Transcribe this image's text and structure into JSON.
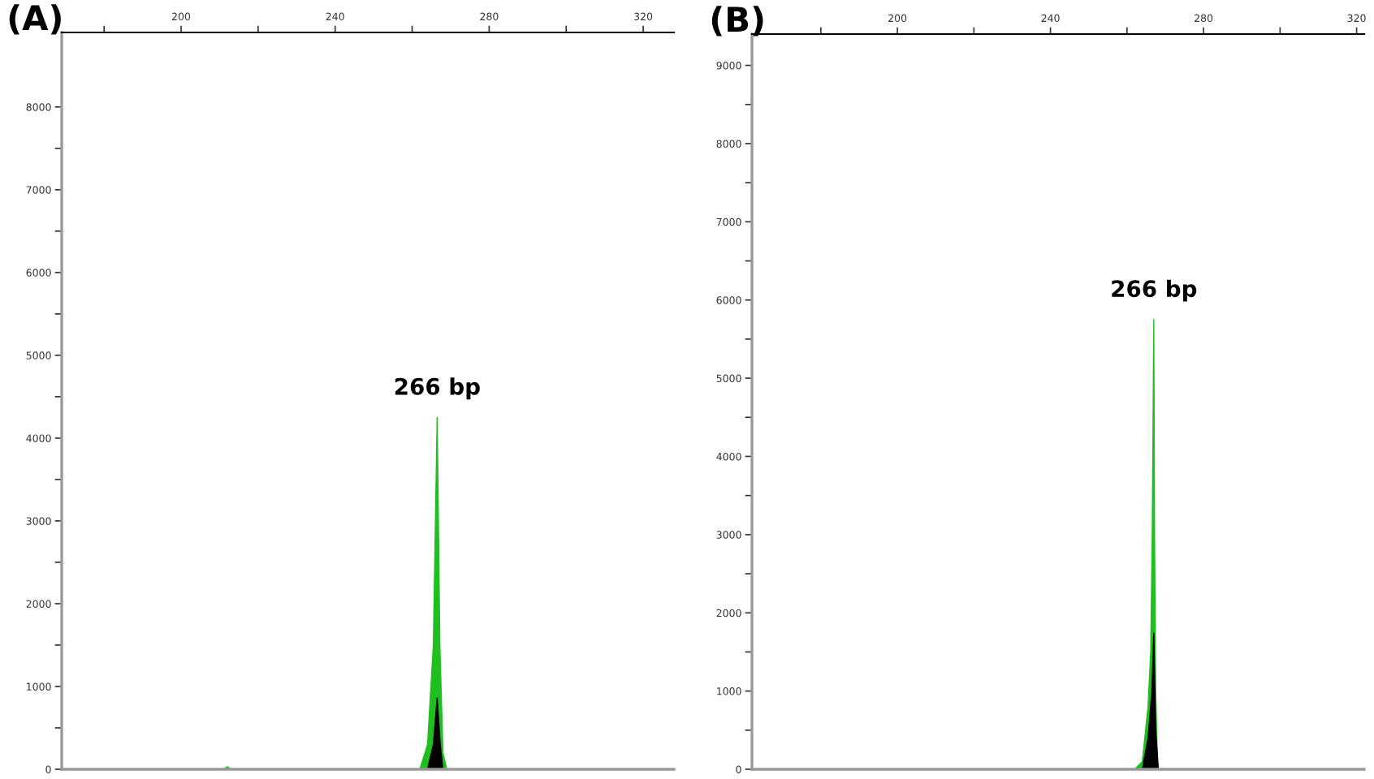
{
  "chart_data": [
    {
      "type": "area",
      "title": "(A)",
      "xlim": [
        169,
        328
      ],
      "ylim": [
        0,
        8900
      ],
      "xticks": [
        {
          "value": 180,
          "label": null
        },
        200,
        {
          "value": 220,
          "label": null
        },
        240,
        {
          "value": 260,
          "label": null
        },
        280,
        {
          "value": 300,
          "label": null
        },
        320
      ],
      "yticks": [
        0,
        {
          "value": 500,
          "label": null
        },
        1000,
        {
          "value": 1500,
          "label": null
        },
        2000,
        {
          "value": 2500,
          "label": null
        },
        3000,
        {
          "value": 3500,
          "label": null
        },
        4000,
        {
          "value": 4500,
          "label": null
        },
        5000,
        {
          "value": 5500,
          "label": null
        },
        6000,
        {
          "value": 6500,
          "label": null
        },
        7000,
        {
          "value": 7500,
          "label": null
        },
        8000
      ],
      "grid": false,
      "legend": false,
      "series": [
        {
          "color": "#1fbf1f",
          "x": [
            169,
            211,
            212,
            213,
            262,
            264,
            265.5,
            266.5,
            267.2,
            268,
            269,
            328
          ],
          "values": [
            0,
            0,
            30,
            0,
            0,
            300,
            1500,
            4250,
            1500,
            200,
            0,
            0
          ]
        },
        {
          "color": "#000000",
          "x": [
            264,
            265.5,
            266.5,
            267.3,
            268
          ],
          "values": [
            0,
            300,
            860,
            300,
            0
          ]
        }
      ],
      "annotations": [
        {
          "text": "266 bp",
          "x": 266.5,
          "y": 4250
        }
      ]
    },
    {
      "type": "area",
      "title": "(B)",
      "xlim": [
        162,
        322
      ],
      "ylim": [
        0,
        9400
      ],
      "xticks": [
        {
          "value": 180,
          "label": null
        },
        200,
        {
          "value": 220,
          "label": null
        },
        240,
        {
          "value": 260,
          "label": null
        },
        280,
        {
          "value": 300,
          "label": null
        },
        320
      ],
      "yticks": [
        0,
        {
          "value": 500,
          "label": null
        },
        1000,
        {
          "value": 1500,
          "label": null
        },
        2000,
        {
          "value": 2500,
          "label": null
        },
        3000,
        {
          "value": 3500,
          "label": null
        },
        4000,
        {
          "value": 4500,
          "label": null
        },
        5000,
        {
          "value": 5500,
          "label": null
        },
        6000,
        {
          "value": 6500,
          "label": null
        },
        7000,
        {
          "value": 7500,
          "label": null
        },
        8000,
        {
          "value": 8500,
          "label": null
        },
        9000
      ],
      "grid": false,
      "legend": false,
      "series": [
        {
          "color": "#1fbf1f",
          "x": [
            162,
            262,
            264,
            265.5,
            266.2,
            266.6,
            267,
            267.2,
            267.5,
            268,
            322
          ],
          "values": [
            0,
            0,
            100,
            800,
            1500,
            3000,
            5750,
            3000,
            1000,
            0,
            0
          ]
        },
        {
          "color": "#000000",
          "x": [
            264,
            265.5,
            266.5,
            267,
            267.5,
            268.2
          ],
          "values": [
            0,
            400,
            1000,
            1740,
            500,
            0
          ]
        }
      ],
      "annotations": [
        {
          "text": "266 bp",
          "x": 267,
          "y": 5750
        }
      ]
    }
  ]
}
